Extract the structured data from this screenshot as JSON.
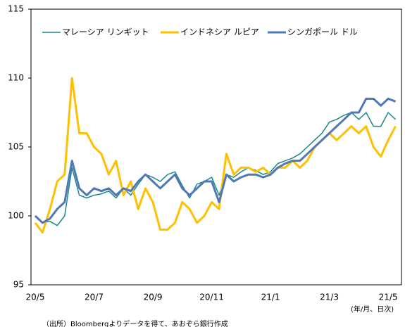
{
  "chart_data": {
    "type": "line",
    "categories": [
      "20/5",
      null,
      null,
      null,
      null,
      null,
      null,
      null,
      "20/7",
      null,
      null,
      null,
      null,
      null,
      null,
      null,
      "20/9",
      null,
      null,
      null,
      null,
      null,
      null,
      null,
      "20/11",
      null,
      null,
      null,
      null,
      null,
      null,
      null,
      "21/1",
      null,
      null,
      null,
      null,
      null,
      null,
      null,
      "21/3",
      null,
      null,
      null,
      null,
      null,
      null,
      null,
      "21/5",
      null
    ],
    "series": [
      {
        "name": "マレーシア リンギット",
        "color": "#1a8a8a",
        "width": 1.5,
        "values": [
          100,
          99.5,
          99.6,
          99.3,
          100,
          103.5,
          101.5,
          101.3,
          101.5,
          101.6,
          101.8,
          101.3,
          102,
          101.5,
          102.3,
          103,
          102.8,
          102.5,
          103,
          103.2,
          102.2,
          101.3,
          102.3,
          102.5,
          102.8,
          101.5,
          103,
          102.8,
          103.2,
          103.5,
          103.3,
          103,
          103.2,
          103.8,
          104,
          104.2,
          104.5,
          105,
          105.5,
          106,
          106.8,
          107,
          107.3,
          107.5,
          107,
          107.5,
          106.5,
          106.5,
          107.5,
          107
        ]
      },
      {
        "name": "インドネシア ルピア",
        "color": "#ffc000",
        "width": 3,
        "values": [
          99.5,
          98.8,
          100.5,
          102.5,
          103,
          110,
          106,
          106,
          105,
          104.5,
          103,
          104,
          101.5,
          102.5,
          100.5,
          102,
          101,
          99,
          99,
          99.5,
          101,
          100.5,
          99.5,
          100,
          101,
          100.5,
          104.5,
          103,
          103.5,
          103.5,
          103.2,
          103.5,
          103,
          103.5,
          103.5,
          104,
          103.5,
          104,
          105,
          105.5,
          106,
          105.5,
          106,
          106.5,
          106,
          106.5,
          105,
          104.3,
          105.5,
          106.5
        ]
      },
      {
        "name": "シンガポール ドル",
        "color": "#4f78b5",
        "width": 3,
        "values": [
          100,
          99.5,
          99.8,
          100.5,
          101,
          104,
          102,
          101.5,
          102,
          101.8,
          102,
          101.5,
          102,
          101.8,
          102.5,
          103,
          102.5,
          102,
          102.5,
          103,
          102,
          101.5,
          102,
          102.5,
          102.5,
          101,
          103,
          102.5,
          102.8,
          103,
          103,
          102.8,
          103,
          103.5,
          103.8,
          104,
          104,
          104.5,
          105,
          105.5,
          106,
          106.5,
          107,
          107.5,
          107.5,
          108.5,
          108.5,
          108,
          108.5,
          108.3
        ]
      }
    ],
    "ylim": [
      95,
      115
    ],
    "yticks": [
      95,
      100,
      105,
      110,
      115
    ],
    "x_label": "(年/月、日次)",
    "source": "（出所）Bloombergよりデータを得て、あおぞら銀行作成"
  }
}
